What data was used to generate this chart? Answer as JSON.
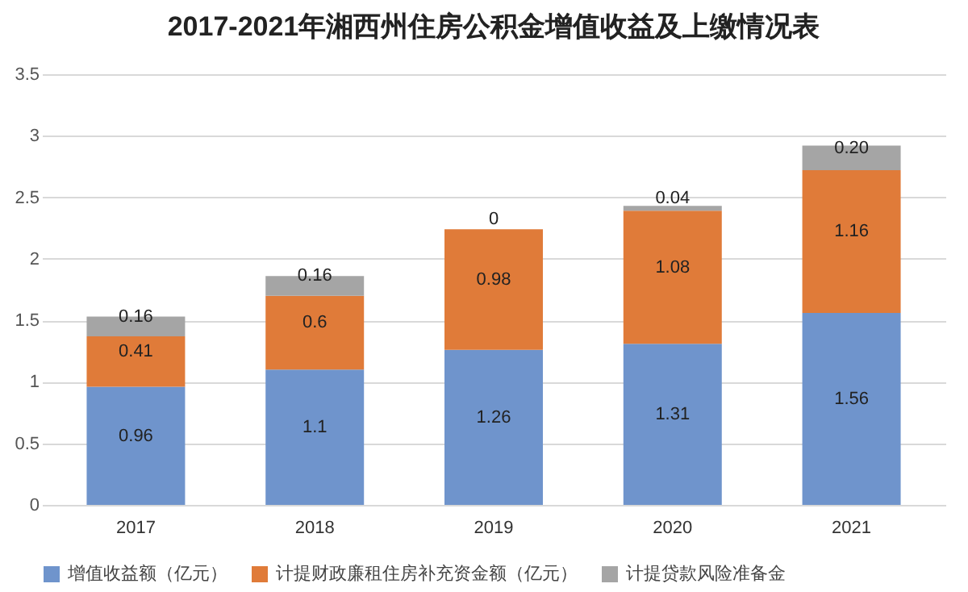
{
  "chart_data": {
    "type": "bar",
    "title": "2017-2021年湘西州住房公积金增值收益及上缴情况表",
    "categories": [
      "2017",
      "2018",
      "2019",
      "2020",
      "2021"
    ],
    "stacked": true,
    "series": [
      {
        "name": "增值收益额（亿元）",
        "color": "#6f94cc",
        "values": [
          0.96,
          1.1,
          1.26,
          1.31,
          1.56
        ],
        "value_labels": [
          "0.96",
          "1.1",
          "1.26",
          "1.31",
          "1.56"
        ]
      },
      {
        "name": "计提财政廉租住房补充资金额（亿元）",
        "color": "#e07b39",
        "values": [
          0.41,
          0.6,
          0.98,
          1.08,
          1.16
        ],
        "value_labels": [
          "0.41",
          "0.6",
          "0.98",
          "1.08",
          "1.16"
        ]
      },
      {
        "name": "计提贷款风险准备金",
        "color": "#a5a5a5",
        "values": [
          0.16,
          0.16,
          0,
          0.04,
          0.2
        ],
        "value_labels": [
          "0.16",
          "0.16",
          "0",
          "0.04",
          "0.20"
        ]
      }
    ],
    "ylim": [
      0,
      3.5
    ],
    "yticks": [
      0,
      0.5,
      1,
      1.5,
      2,
      2.5,
      3,
      3.5
    ],
    "grid": "y",
    "legend": "bottom"
  }
}
